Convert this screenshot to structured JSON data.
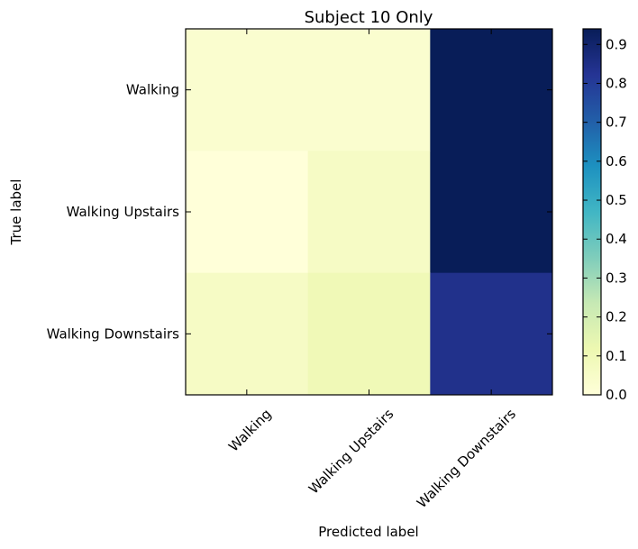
{
  "chart_data": {
    "type": "heatmap",
    "title": "Subject 10 Only",
    "xlabel": "Predicted label",
    "ylabel": "True label",
    "x_categories": [
      "Walking",
      "Walking Upstairs",
      "Walking Downstairs"
    ],
    "y_categories": [
      "Walking",
      "Walking Upstairs",
      "Walking Downstairs"
    ],
    "values": [
      [
        0.03,
        0.03,
        0.94
      ],
      [
        0.0,
        0.06,
        0.94
      ],
      [
        0.06,
        0.1,
        0.84
      ]
    ],
    "colorbar": {
      "range": [
        0.0,
        0.94
      ],
      "ticks": [
        "0.0",
        "0.1",
        "0.2",
        "0.3",
        "0.4",
        "0.5",
        "0.6",
        "0.7",
        "0.8",
        "0.9"
      ],
      "colormap": "YlGnBu",
      "colors": [
        "#ffffd9",
        "#edf8b1",
        "#c7e9b4",
        "#7fcdbb",
        "#41b6c4",
        "#1d91c0",
        "#225ea8",
        "#253494",
        "#081d58"
      ]
    },
    "grid": false
  }
}
